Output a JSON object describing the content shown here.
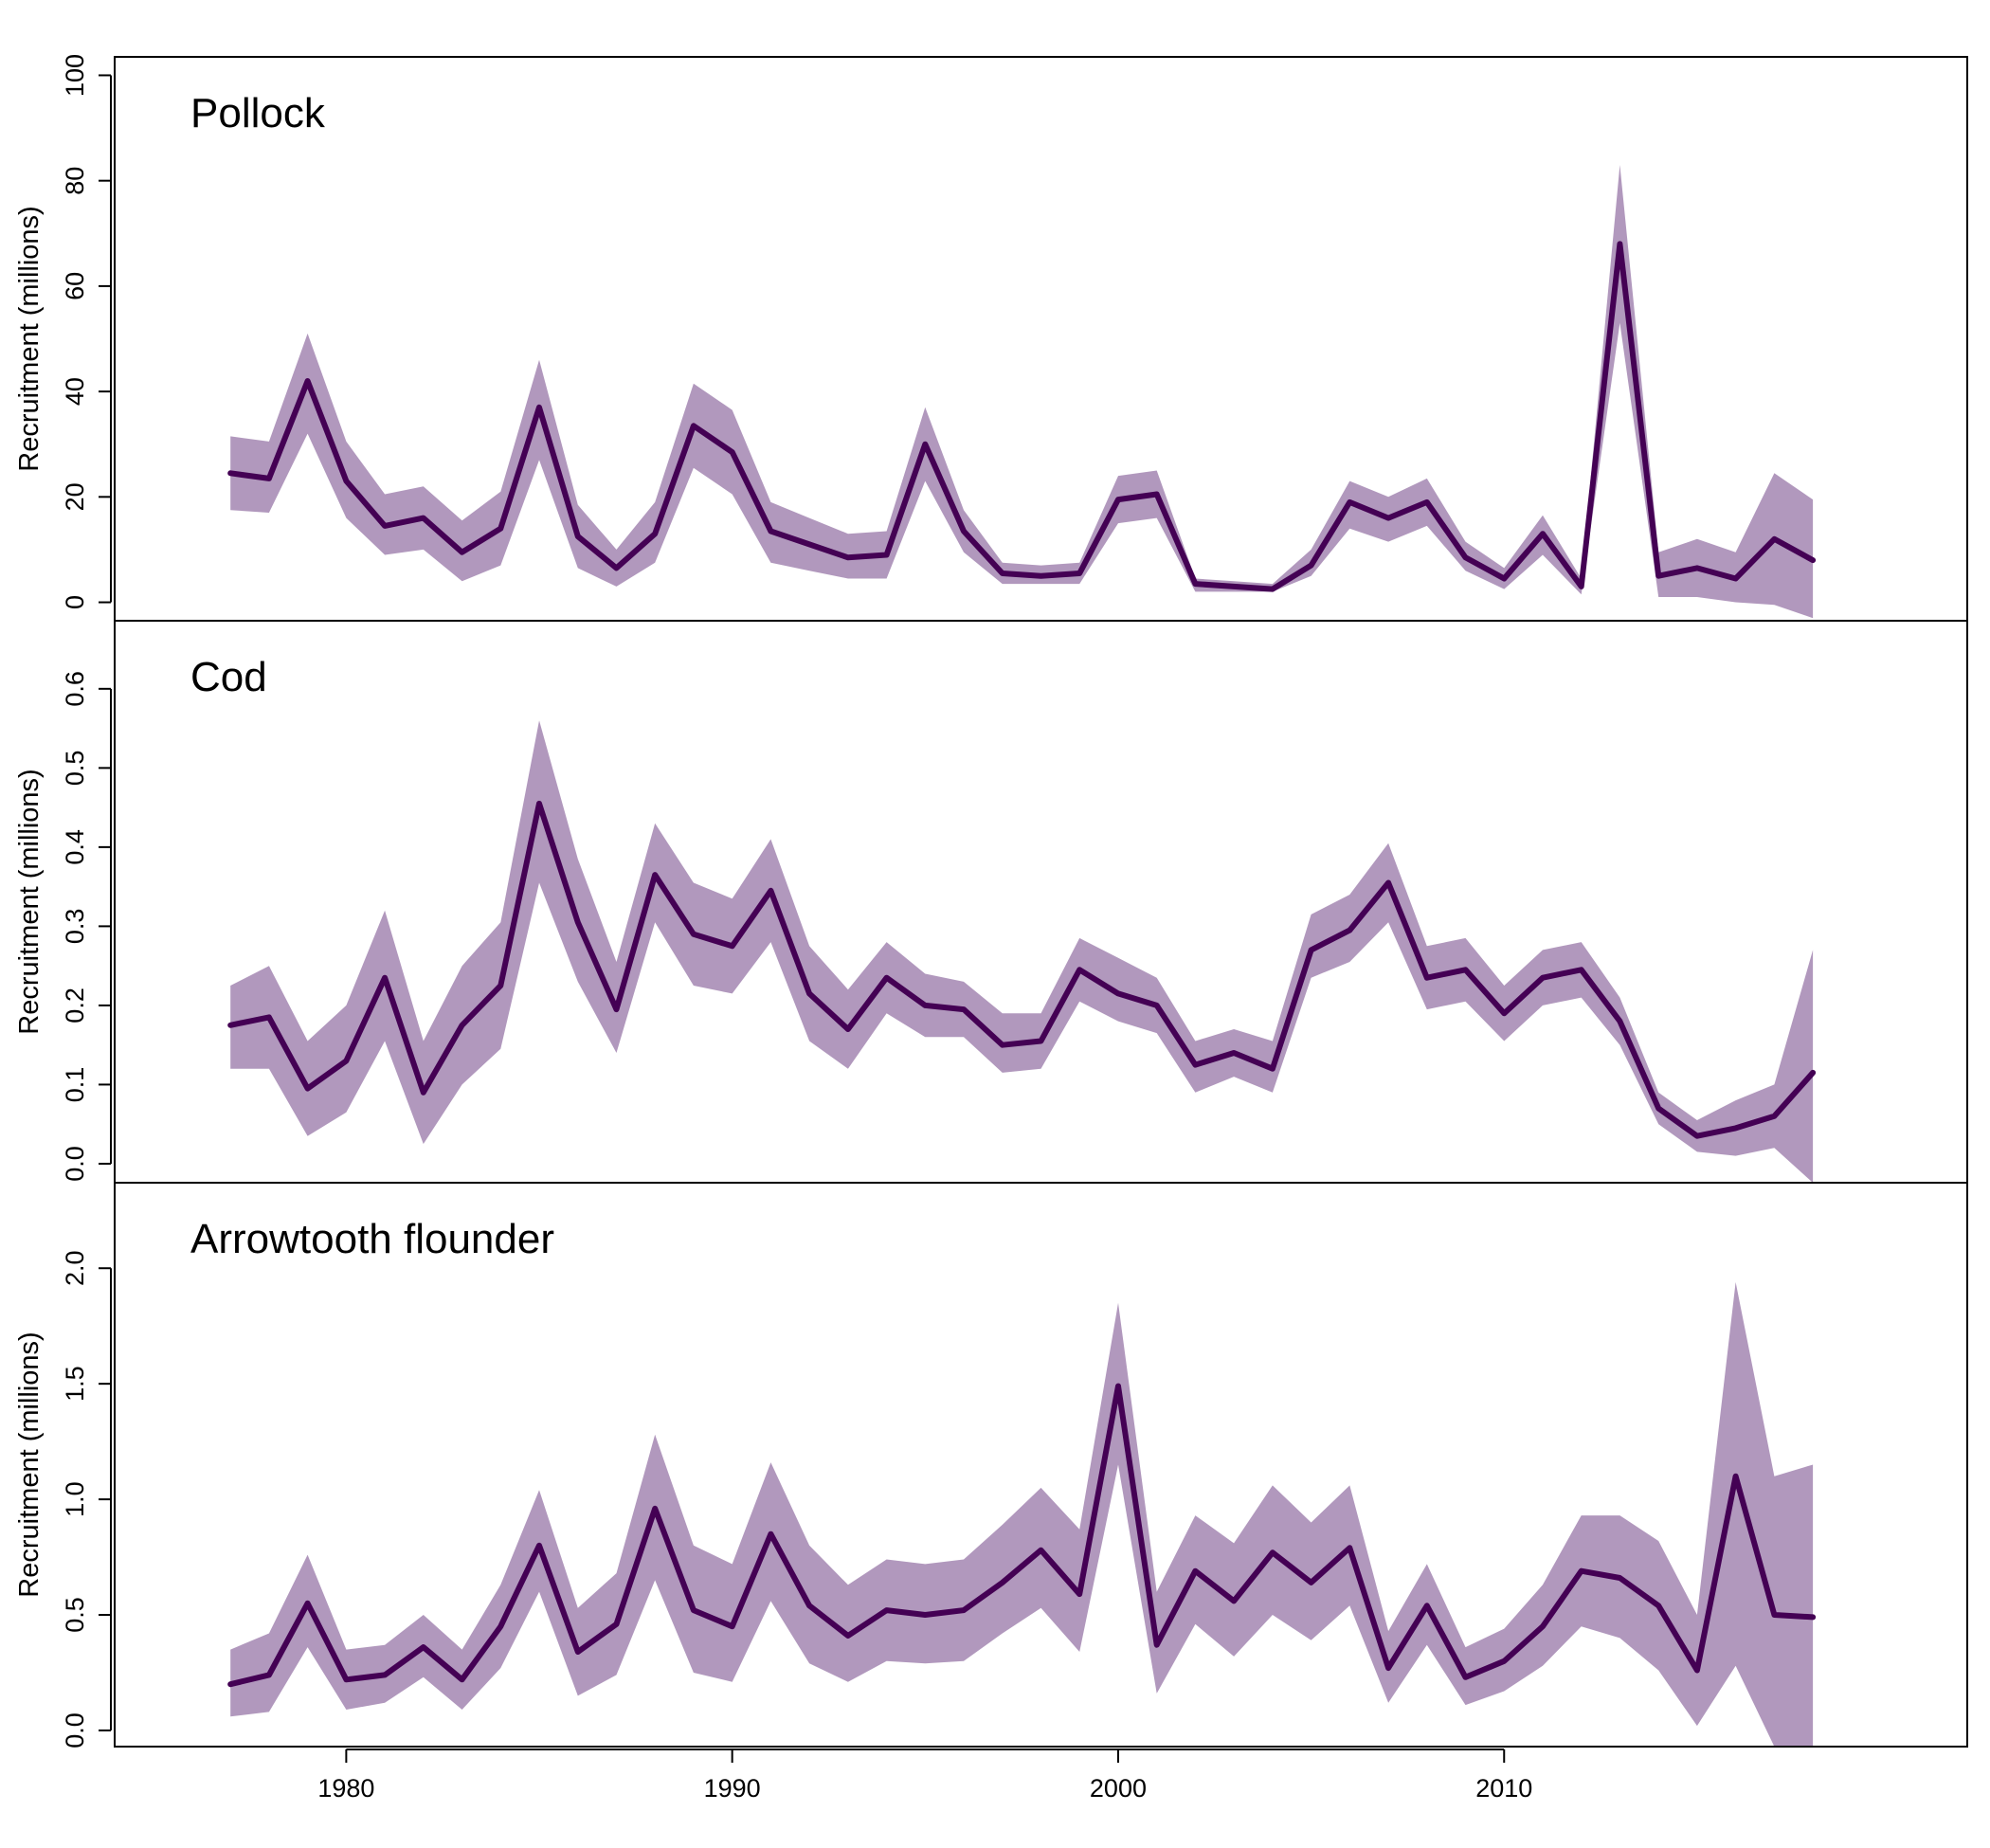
{
  "colors": {
    "line": "#440154",
    "band": "#b198bd",
    "axis": "#000000"
  },
  "x_axis": {
    "range": [
      1974,
      2022
    ],
    "ticks": [
      1980,
      1990,
      2000,
      2010
    ],
    "tick_labels": [
      "1980",
      "1990",
      "2000",
      "2010"
    ]
  },
  "chart_data": [
    {
      "type": "line",
      "title": "Pollock",
      "xlabel": "",
      "ylabel": "Recruitment (millions)",
      "ylim": [
        -3.5,
        103.5
      ],
      "yticks": [
        0,
        20,
        40,
        60,
        80,
        100
      ],
      "ytick_labels": [
        "0",
        "20",
        "40",
        "60",
        "80",
        "100"
      ],
      "x": [
        1977,
        1978,
        1979,
        1980,
        1981,
        1982,
        1983,
        1984,
        1985,
        1986,
        1987,
        1988,
        1989,
        1990,
        1991,
        1992,
        1993,
        1994,
        1995,
        1996,
        1997,
        1998,
        1999,
        2000,
        2001,
        2002,
        2003,
        2004,
        2005,
        2006,
        2007,
        2008,
        2009,
        2010,
        2011,
        2012,
        2013,
        2014,
        2015,
        2016,
        2017,
        2018
      ],
      "series": [
        {
          "values": [
            24.5,
            23.5,
            42,
            23,
            14.5,
            16,
            9.5,
            14,
            37,
            12.5,
            6.5,
            13,
            33.5,
            28.5,
            13.5,
            11,
            8.5,
            9,
            30,
            13.5,
            5.5,
            5,
            5.5,
            19.5,
            20.5,
            3.5,
            3,
            2.5,
            7,
            19,
            16,
            19,
            8.5,
            4.5,
            13,
            3,
            68,
            5,
            6.5,
            4.5,
            12,
            8
          ],
          "lower": [
            17.5,
            17,
            32,
            16,
            9,
            10,
            4,
            7,
            27,
            6.5,
            3,
            7.5,
            25.5,
            20.5,
            7.5,
            6,
            4.5,
            4.5,
            23,
            9.5,
            3.5,
            3.5,
            3.5,
            15,
            16,
            2,
            2,
            2,
            5,
            14,
            11.5,
            14.5,
            6,
            2.5,
            9,
            1.5,
            53,
            1,
            1,
            0,
            -0.5,
            -3
          ],
          "upper": [
            31.5,
            30.5,
            51,
            30.5,
            20.5,
            22,
            15.5,
            21,
            46,
            18.5,
            10,
            19,
            41.5,
            36.5,
            19,
            16,
            13,
            13.5,
            37,
            17.5,
            7.5,
            7,
            7.5,
            24,
            25,
            4.5,
            4,
            3.5,
            10,
            23,
            20,
            23.5,
            11.5,
            6.5,
            16.5,
            4.5,
            83,
            9.5,
            12,
            9.5,
            24.5,
            19.5
          ]
        }
      ]
    },
    {
      "type": "line",
      "title": "Cod",
      "xlabel": "",
      "ylabel": "Recruitment (millions)",
      "ylim": [
        -0.024,
        0.686
      ],
      "yticks": [
        0,
        0.1,
        0.2,
        0.3,
        0.4,
        0.5,
        0.6
      ],
      "ytick_labels": [
        "0.0",
        "0.1",
        "0.2",
        "0.3",
        "0.4",
        "0.5",
        "0.6"
      ],
      "x": [
        1977,
        1978,
        1979,
        1980,
        1981,
        1982,
        1983,
        1984,
        1985,
        1986,
        1987,
        1988,
        1989,
        1990,
        1991,
        1992,
        1993,
        1994,
        1995,
        1996,
        1997,
        1998,
        1999,
        2000,
        2001,
        2002,
        2003,
        2004,
        2005,
        2006,
        2007,
        2008,
        2009,
        2010,
        2011,
        2012,
        2013,
        2014,
        2015,
        2016,
        2017,
        2018
      ],
      "series": [
        {
          "values": [
            0.175,
            0.185,
            0.095,
            0.13,
            0.235,
            0.09,
            0.175,
            0.225,
            0.455,
            0.305,
            0.195,
            0.365,
            0.29,
            0.275,
            0.345,
            0.215,
            0.17,
            0.235,
            0.2,
            0.195,
            0.15,
            0.155,
            0.245,
            0.215,
            0.2,
            0.125,
            0.14,
            0.12,
            0.27,
            0.295,
            0.355,
            0.235,
            0.245,
            0.19,
            0.235,
            0.245,
            0.18,
            0.07,
            0.035,
            0.045,
            0.06,
            0.115
          ],
          "lower": [
            0.12,
            0.12,
            0.035,
            0.065,
            0.155,
            0.025,
            0.1,
            0.145,
            0.355,
            0.23,
            0.14,
            0.305,
            0.225,
            0.215,
            0.28,
            0.155,
            0.12,
            0.19,
            0.16,
            0.16,
            0.115,
            0.12,
            0.205,
            0.18,
            0.165,
            0.09,
            0.11,
            0.09,
            0.235,
            0.255,
            0.305,
            0.195,
            0.205,
            0.155,
            0.2,
            0.21,
            0.15,
            0.05,
            0.015,
            0.01,
            0.02,
            -0.024
          ],
          "upper": [
            0.225,
            0.25,
            0.155,
            0.2,
            0.32,
            0.155,
            0.25,
            0.305,
            0.56,
            0.385,
            0.255,
            0.43,
            0.355,
            0.335,
            0.41,
            0.275,
            0.22,
            0.28,
            0.24,
            0.23,
            0.19,
            0.19,
            0.285,
            0.26,
            0.235,
            0.155,
            0.17,
            0.155,
            0.315,
            0.34,
            0.405,
            0.275,
            0.285,
            0.225,
            0.27,
            0.28,
            0.21,
            0.09,
            0.055,
            0.08,
            0.1,
            0.27
          ]
        }
      ]
    },
    {
      "type": "line",
      "title": "Arrowtooth flounder",
      "xlabel": "",
      "ylabel": "Recruitment (millions)",
      "ylim": [
        -0.07,
        2.37
      ],
      "yticks": [
        0,
        0.5,
        1,
        1.5,
        2
      ],
      "ytick_labels": [
        "0.0",
        "0.5",
        "1.0",
        "1.5",
        "2.0"
      ],
      "x": [
        1977,
        1978,
        1979,
        1980,
        1981,
        1982,
        1983,
        1984,
        1985,
        1986,
        1987,
        1988,
        1989,
        1990,
        1991,
        1992,
        1993,
        1994,
        1995,
        1996,
        1997,
        1998,
        1999,
        2000,
        2001,
        2002,
        2003,
        2004,
        2005,
        2006,
        2007,
        2008,
        2009,
        2010,
        2011,
        2012,
        2013,
        2014,
        2015,
        2016,
        2017,
        2018
      ],
      "series": [
        {
          "values": [
            0.2,
            0.24,
            0.55,
            0.22,
            0.24,
            0.36,
            0.22,
            0.45,
            0.8,
            0.34,
            0.46,
            0.96,
            0.52,
            0.45,
            0.85,
            0.54,
            0.41,
            0.52,
            0.5,
            0.52,
            0.64,
            0.78,
            0.59,
            1.49,
            0.37,
            0.69,
            0.56,
            0.77,
            0.64,
            0.79,
            0.27,
            0.54,
            0.23,
            0.3,
            0.45,
            0.69,
            0.66,
            0.54,
            0.26,
            1.1,
            0.5,
            0.49
          ],
          "lower": [
            0.06,
            0.08,
            0.36,
            0.09,
            0.12,
            0.23,
            0.09,
            0.27,
            0.6,
            0.15,
            0.24,
            0.65,
            0.25,
            0.21,
            0.56,
            0.29,
            0.21,
            0.3,
            0.29,
            0.3,
            0.42,
            0.53,
            0.34,
            1.15,
            0.16,
            0.46,
            0.32,
            0.5,
            0.39,
            0.54,
            0.12,
            0.37,
            0.11,
            0.17,
            0.28,
            0.45,
            0.4,
            0.26,
            0.02,
            0.28,
            -0.07,
            -0.07
          ],
          "upper": [
            0.35,
            0.42,
            0.76,
            0.35,
            0.37,
            0.5,
            0.35,
            0.63,
            1.04,
            0.53,
            0.68,
            1.28,
            0.8,
            0.72,
            1.16,
            0.8,
            0.63,
            0.74,
            0.72,
            0.74,
            0.89,
            1.05,
            0.87,
            1.85,
            0.6,
            0.93,
            0.81,
            1.06,
            0.9,
            1.06,
            0.43,
            0.72,
            0.36,
            0.44,
            0.63,
            0.93,
            0.93,
            0.82,
            0.5,
            1.94,
            1.1,
            1.15
          ]
        }
      ]
    }
  ]
}
